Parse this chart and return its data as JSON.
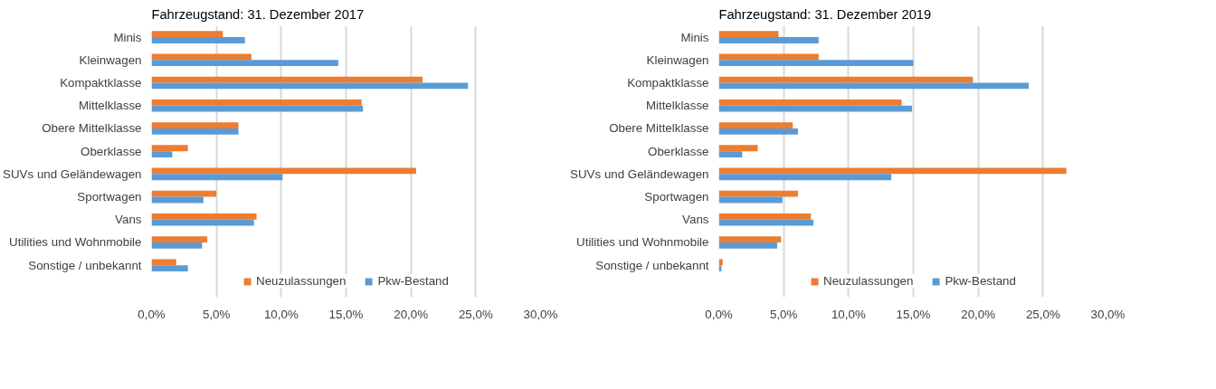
{
  "chart_data": [
    {
      "type": "bar",
      "orientation": "horizontal",
      "title": "Fahrzeugstand:  31. Dezember 2017",
      "categories": [
        "Minis",
        "Kleinwagen",
        "Kompaktklasse",
        "Mittelklasse",
        "Obere Mittelklasse",
        "Oberklasse",
        "SUVs und Geländewagen",
        "Sportwagen",
        "Vans",
        "Utilities und Wohnmobile",
        "Sonstige / unbekannt"
      ],
      "series": [
        {
          "name": "Neuzulassungen",
          "color": "#ed7d31",
          "values": [
            5.5,
            7.7,
            20.9,
            16.2,
            6.7,
            2.8,
            20.4,
            5.0,
            8.1,
            4.3,
            1.9
          ]
        },
        {
          "name": "Pkw-Bestand",
          "color": "#5b9bd5",
          "values": [
            7.2,
            14.4,
            24.4,
            16.3,
            6.7,
            1.6,
            10.1,
            4.0,
            7.9,
            3.9,
            2.8
          ]
        }
      ],
      "xlim": [
        0,
        30
      ],
      "xticks": [
        {
          "value": 0,
          "label": "0,0%"
        },
        {
          "value": 5,
          "label": "5,0%"
        },
        {
          "value": 10,
          "label": "10,0%"
        },
        {
          "value": 15,
          "label": "15,0%"
        },
        {
          "value": 20,
          "label": "20,0%"
        },
        {
          "value": 25,
          "label": "25,0%"
        },
        {
          "value": 30,
          "label": "30,0%"
        }
      ],
      "grid": "x",
      "legend": "bottom"
    },
    {
      "type": "bar",
      "orientation": "horizontal",
      "title": "Fahrzeugstand:  31. Dezember 2019",
      "categories": [
        "Minis",
        "Kleinwagen",
        "Kompaktklasse",
        "Mittelklasse",
        "Obere Mittelklasse",
        "Oberklasse",
        "SUVs und Geländewagen",
        "Sportwagen",
        "Vans",
        "Utilities und Wohnmobile",
        "Sonstige / unbekannt"
      ],
      "series": [
        {
          "name": "Neuzulassungen",
          "color": "#ed7d31",
          "values": [
            4.6,
            7.7,
            19.6,
            14.1,
            5.7,
            3.0,
            26.8,
            6.1,
            7.1,
            4.8,
            0.3
          ]
        },
        {
          "name": "Pkw-Bestand",
          "color": "#5b9bd5",
          "values": [
            7.7,
            15.0,
            23.9,
            14.9,
            6.1,
            1.8,
            13.3,
            4.9,
            7.3,
            4.5,
            0.2
          ]
        }
      ],
      "xlim": [
        0,
        30
      ],
      "xticks": [
        {
          "value": 0,
          "label": "0,0%"
        },
        {
          "value": 5,
          "label": "5,0%"
        },
        {
          "value": 10,
          "label": "10,0%"
        },
        {
          "value": 15,
          "label": "15,0%"
        },
        {
          "value": 20,
          "label": "20,0%"
        },
        {
          "value": 25,
          "label": "25,0%"
        },
        {
          "value": 30,
          "label": "30,0%"
        }
      ],
      "grid": "x",
      "legend": "bottom"
    }
  ]
}
